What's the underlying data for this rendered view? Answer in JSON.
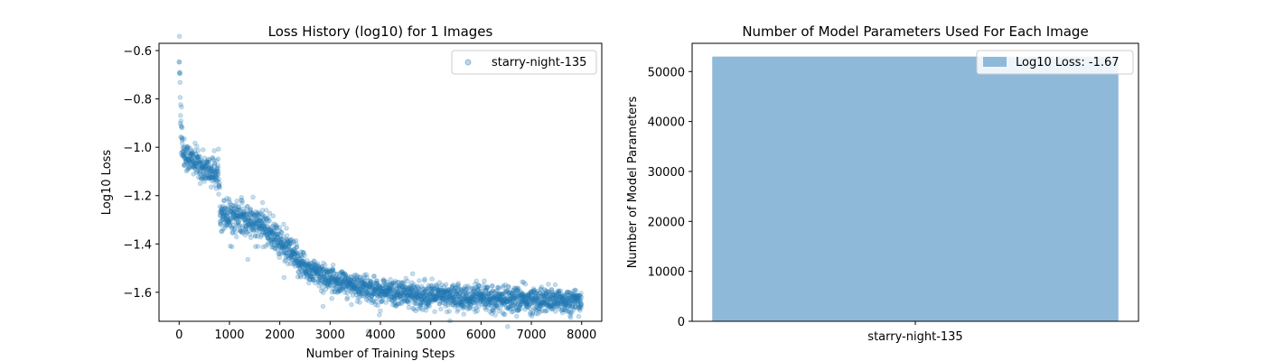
{
  "chart_data": [
    {
      "type": "scatter",
      "title": "Loss History (log10) for 1 Images",
      "xlabel": "Number of Training Steps",
      "ylabel": "Log10 Loss",
      "xlim": [
        -400,
        8400
      ],
      "ylim": [
        -1.72,
        -0.57
      ],
      "xticks": [
        0,
        1000,
        2000,
        3000,
        4000,
        5000,
        6000,
        7000,
        8000
      ],
      "xtick_labels": [
        "0",
        "1000",
        "2000",
        "3000",
        "4000",
        "5000",
        "6000",
        "7000",
        "8000"
      ],
      "yticks": [
        -0.6,
        -0.8,
        -1.0,
        -1.2,
        -1.4,
        -1.6
      ],
      "ytick_labels": [
        "−0.6",
        "−0.8",
        "−1.0",
        "−1.2",
        "−1.4",
        "−1.6"
      ],
      "legend_position": "top-right",
      "series": [
        {
          "name": "starry-night-135",
          "color": "#1f77b4",
          "trend": [
            [
              0,
              -0.62
            ],
            [
              30,
              -0.85
            ],
            [
              80,
              -1.02
            ],
            [
              150,
              -1.04
            ],
            [
              300,
              -1.06
            ],
            [
              500,
              -1.09
            ],
            [
              780,
              -1.11
            ],
            [
              820,
              -1.27
            ],
            [
              1200,
              -1.29
            ],
            [
              1700,
              -1.33
            ],
            [
              2000,
              -1.39
            ],
            [
              2300,
              -1.46
            ],
            [
              2600,
              -1.51
            ],
            [
              3000,
              -1.545
            ],
            [
              3500,
              -1.575
            ],
            [
              4000,
              -1.595
            ],
            [
              5000,
              -1.615
            ],
            [
              6000,
              -1.625
            ],
            [
              7000,
              -1.632
            ],
            [
              8000,
              -1.637
            ]
          ]
        }
      ]
    },
    {
      "type": "bar",
      "title": "Number of Model Parameters Used For Each Image",
      "xlabel": "",
      "ylabel": "Number of Model Parameters",
      "categories": [
        "starry-night-135"
      ],
      "values": [
        53000
      ],
      "ylim": [
        0,
        55650
      ],
      "yticks": [
        0,
        10000,
        20000,
        30000,
        40000,
        50000
      ],
      "ytick_labels": [
        "0",
        "10000",
        "20000",
        "30000",
        "40000",
        "50000"
      ],
      "legend_position": "top-right",
      "series": [
        {
          "name": "Log10 Loss: -1.67",
          "values": [
            53000
          ],
          "color": "#8fb9d9"
        }
      ]
    }
  ]
}
